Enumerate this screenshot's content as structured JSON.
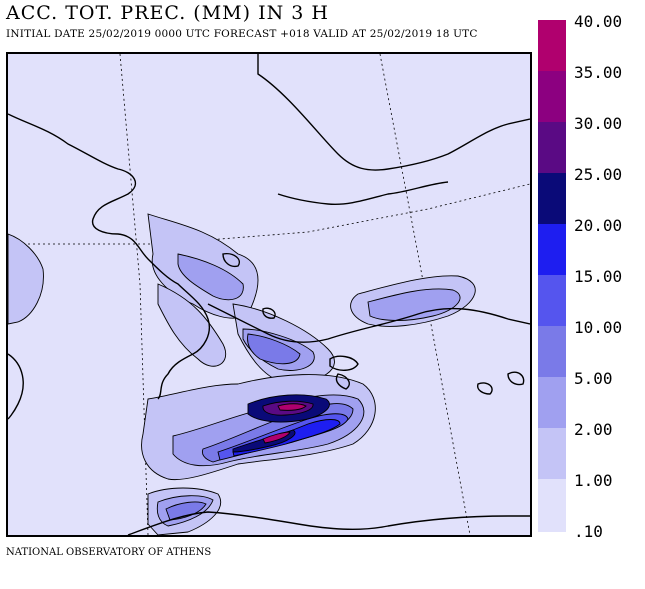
{
  "header": {
    "title": "ACC. TOT. PREC. (MM) IN 3 H",
    "subtitle": "INITIAL DATE 25/02/2019   0000 UTC  FORECAST +018 VALID AT  25/02/2019  18 UTC"
  },
  "footer": {
    "credit": "NATIONAL OBSERVATORY OF ATHENS"
  },
  "legend": {
    "items": [
      {
        "label": "40.00",
        "color": "#b0006e"
      },
      {
        "label": "35.00",
        "color": "#8c0080"
      },
      {
        "label": "30.00",
        "color": "#5a0a84"
      },
      {
        "label": "25.00",
        "color": "#0a0a78"
      },
      {
        "label": "20.00",
        "color": "#1e1ef0"
      },
      {
        "label": "15.00",
        "color": "#5555ee"
      },
      {
        "label": "10.00",
        "color": "#7a7ae8"
      },
      {
        "label": "5.00",
        "color": "#a0a0f0"
      },
      {
        "label": "2.00",
        "color": "#c4c4f6"
      },
      {
        "label": "1.00",
        "color": "#e1e1fb"
      }
    ],
    "bottom_label": ".10"
  },
  "map": {
    "background_color": "#e1e1fb"
  }
}
